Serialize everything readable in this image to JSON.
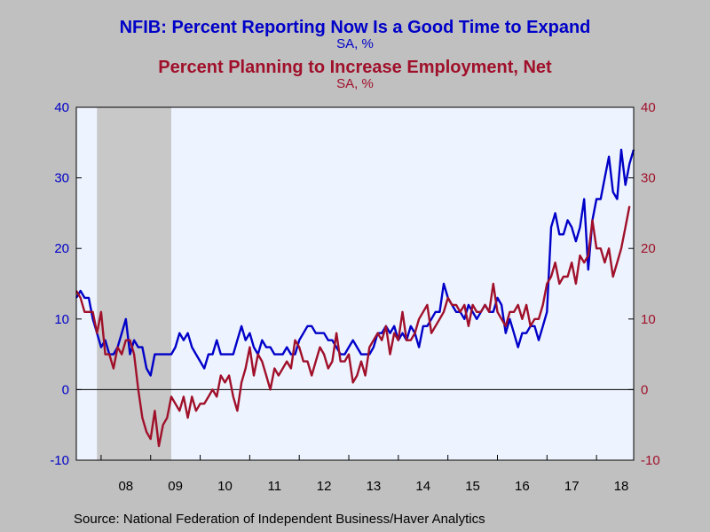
{
  "header": {
    "title1": "NFIB: Percent Reporting Now Is a Good Time to Expand",
    "subtitle1": "SA, %",
    "title2": "Percent Planning to Increase Employment, Net",
    "subtitle2": "SA, %"
  },
  "footer": {
    "source": "Source:  National Federation of Independent Business/Haver Analytics"
  },
  "colors": {
    "series1": "#0000c8",
    "series2": "#a0102a",
    "plot_bg": "#eef4ff",
    "recession": "#c8c8c8"
  },
  "chart_data": {
    "type": "line",
    "x_start": "2007-07",
    "frequency": "monthly",
    "x_tick_labels": [
      "08",
      "09",
      "10",
      "11",
      "12",
      "13",
      "14",
      "15",
      "16",
      "17",
      "18"
    ],
    "ylim_left": [
      -10,
      40
    ],
    "ylim_right": [
      -10,
      40
    ],
    "yticks": [
      -10,
      0,
      10,
      20,
      30,
      40
    ],
    "zero_line": true,
    "recession_shading": {
      "start": "2007-12",
      "end": "2009-06"
    },
    "series": [
      {
        "name": "NFIB: Percent Reporting Now Is a Good Time to Expand",
        "axis": "left",
        "color": "#0000c8",
        "values": [
          13,
          14,
          13,
          13,
          10,
          8,
          6,
          7,
          5,
          5,
          6,
          8,
          10,
          5,
          7,
          6,
          6,
          3,
          2,
          5,
          5,
          5,
          5,
          5,
          6,
          8,
          7,
          8,
          6,
          5,
          4,
          3,
          5,
          5,
          7,
          5,
          5,
          5,
          5,
          7,
          9,
          7,
          8,
          6,
          5,
          7,
          6,
          6,
          5,
          5,
          5,
          6,
          5,
          5,
          7,
          8,
          9,
          9,
          8,
          8,
          8,
          7,
          7,
          6,
          5,
          5,
          6,
          7,
          6,
          5,
          5,
          5,
          6,
          8,
          8,
          9,
          8,
          9,
          7,
          8,
          7,
          9,
          8,
          6,
          9,
          9,
          10,
          11,
          11,
          15,
          13,
          12,
          11,
          11,
          10,
          12,
          11,
          10,
          11,
          12,
          11,
          11,
          13,
          12,
          8,
          10,
          8,
          6,
          8,
          8,
          9,
          9,
          7,
          9,
          11,
          23,
          25,
          22,
          22,
          24,
          23,
          21,
          23,
          27,
          17,
          24,
          27,
          27,
          30,
          33,
          28,
          27,
          34,
          29,
          32,
          34
        ]
      },
      {
        "name": "Percent Planning to Increase Employment, Net",
        "axis": "right",
        "color": "#a0102a",
        "values": [
          14,
          13,
          11,
          11,
          11,
          8,
          11,
          5,
          5,
          3,
          6,
          5,
          7,
          7,
          5,
          0,
          -4,
          -6,
          -7,
          -3,
          -8,
          -5,
          -4,
          -1,
          -2,
          -3,
          -1,
          -4,
          -1,
          -3,
          -2,
          -2,
          -1,
          0,
          -1,
          2,
          1,
          2,
          -1,
          -3,
          1,
          3,
          6,
          2,
          5,
          4,
          2,
          0,
          3,
          2,
          3,
          4,
          3,
          7,
          6,
          4,
          4,
          2,
          4,
          6,
          5,
          3,
          4,
          8,
          4,
          4,
          5,
          1,
          2,
          4,
          2,
          6,
          7,
          8,
          7,
          9,
          5,
          8,
          7,
          11,
          7,
          7,
          8,
          10,
          11,
          12,
          8,
          9,
          10,
          11,
          13,
          12,
          12,
          11,
          12,
          9,
          12,
          11,
          11,
          12,
          11,
          15,
          11,
          10,
          9,
          11,
          11,
          12,
          10,
          12,
          9,
          10,
          10,
          12,
          15,
          16,
          18,
          15,
          16,
          16,
          18,
          15,
          19,
          18,
          19,
          24,
          20,
          20,
          18,
          20,
          16,
          18,
          20,
          23,
          26
        ]
      }
    ]
  }
}
